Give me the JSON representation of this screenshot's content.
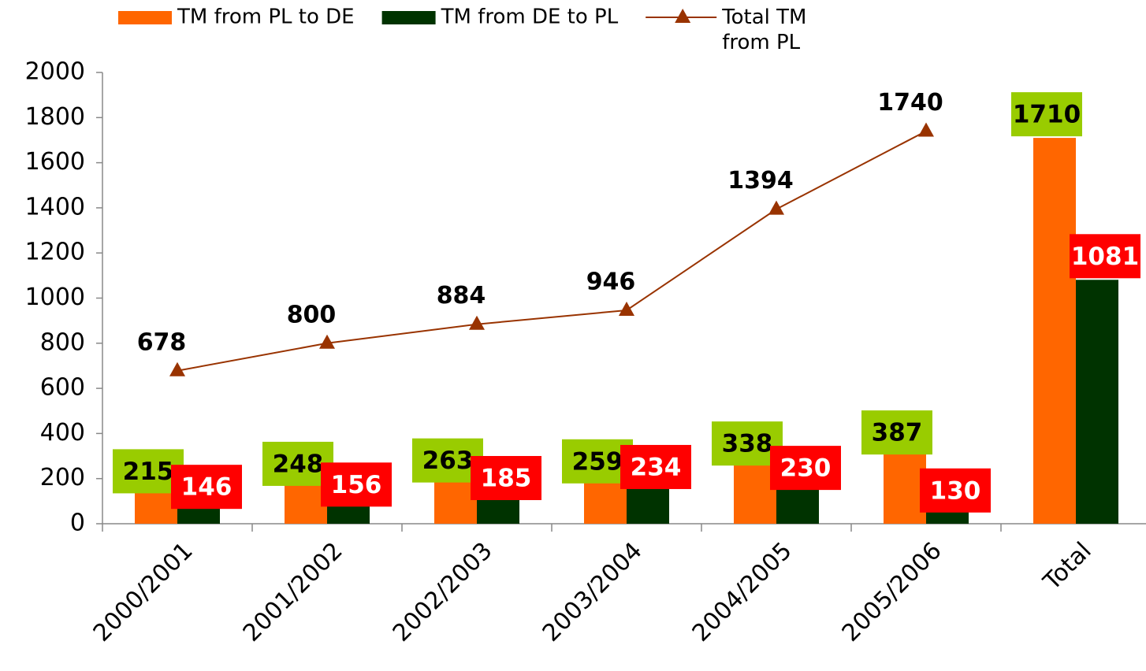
{
  "chart_data": {
    "type": "bar",
    "categories": [
      "2000/2001",
      "2001/2002",
      "2002/2003",
      "2003/2004",
      "2004/2005",
      "2005/2006",
      "Total"
    ],
    "series": [
      {
        "name": "TM from PL to DE",
        "color": "#ff6600",
        "values": [
          215,
          248,
          263,
          259,
          338,
          387,
          1710
        ]
      },
      {
        "name": "TM from DE to PL",
        "color": "#003300",
        "values": [
          146,
          156,
          185,
          234,
          230,
          130,
          1081
        ]
      },
      {
        "name": "Total TM from PL",
        "type": "line",
        "color": "#993300",
        "values": [
          678,
          800,
          884,
          946,
          1394,
          1740,
          null
        ]
      }
    ],
    "ylim": [
      0,
      2000
    ],
    "yticks": [
      0,
      200,
      400,
      600,
      800,
      1000,
      1200,
      1400,
      1600,
      1800,
      2000
    ],
    "legend": "top"
  }
}
